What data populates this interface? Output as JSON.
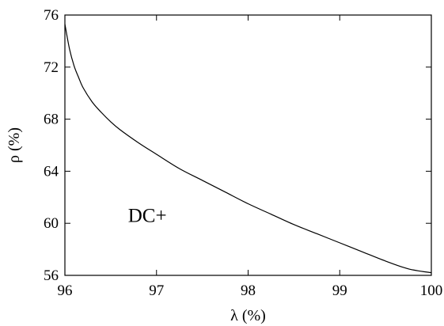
{
  "chart_data": {
    "type": "line",
    "title": "",
    "xlabel": "λ (%)",
    "ylabel": "ρ (%)",
    "xlim": [
      96,
      100
    ],
    "ylim": [
      56,
      76
    ],
    "xticks": [
      96,
      97,
      98,
      99,
      100
    ],
    "yticks": [
      56,
      60,
      64,
      68,
      72,
      76
    ],
    "grid": false,
    "legend": "none",
    "annotations": [
      {
        "text": "DC+",
        "x": 96.9,
        "y": 60.1
      }
    ],
    "series": [
      {
        "color": "#000000",
        "x": [
          96.0,
          96.05,
          96.1,
          96.15,
          96.2,
          96.3,
          96.4,
          96.5,
          96.6,
          96.8,
          97.0,
          97.25,
          97.5,
          97.75,
          98.0,
          98.25,
          98.5,
          98.75,
          99.0,
          99.25,
          99.5,
          99.75,
          100.0
        ],
        "y": [
          75.3,
          73.4,
          72.1,
          71.2,
          70.4,
          69.3,
          68.5,
          67.8,
          67.2,
          66.2,
          65.3,
          64.2,
          63.3,
          62.4,
          61.5,
          60.7,
          59.9,
          59.2,
          58.5,
          57.8,
          57.1,
          56.5,
          56.2
        ]
      }
    ]
  }
}
